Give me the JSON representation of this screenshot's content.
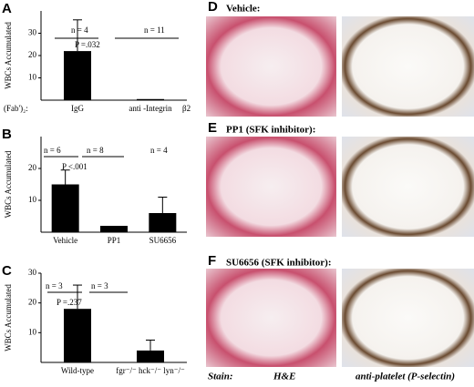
{
  "chart_data": [
    {
      "type": "bar",
      "panel": "A",
      "ylabel": "WBCs Accumulated",
      "categories": [
        "IgG",
        "anti -Integrin"
      ],
      "values": [
        22,
        0.5
      ],
      "errors": [
        14,
        0
      ],
      "color": "#000000",
      "ylim": [
        0,
        40
      ],
      "yticks": [
        10,
        20,
        30
      ],
      "annotations": [
        "n = 4",
        "n = 11",
        "P =.032",
        "(Fab')₂:",
        "β2"
      ]
    },
    {
      "type": "bar",
      "panel": "B",
      "ylabel": "WBCs Accumulated",
      "categories": [
        "Vehicle",
        "PP1",
        "SU6656"
      ],
      "values": [
        15,
        2,
        6
      ],
      "errors": [
        4.5,
        0,
        5
      ],
      "color": "#000000",
      "ylim": [
        0,
        30
      ],
      "yticks": [
        10,
        20
      ],
      "annotations": [
        "n = 6",
        "n = 8",
        "n = 4",
        "P <.001"
      ]
    },
    {
      "type": "bar",
      "panel": "C",
      "ylabel": "WBCs Accumulated",
      "categories": [
        "Wild-type",
        "fgr⁻/⁻ hck⁻/⁻ lyn⁻/⁻"
      ],
      "values": [
        18,
        4
      ],
      "errors": [
        8,
        3.5
      ],
      "color": "#000000",
      "ylim": [
        0,
        30
      ],
      "yticks": [
        10,
        20,
        30
      ],
      "annotations": [
        "n = 3",
        "n = 3",
        "P =.237"
      ]
    }
  ],
  "panels": [
    {
      "label": "D",
      "title": "Vehicle:"
    },
    {
      "label": "E",
      "title": "PP1 (SFK inhibitor):"
    },
    {
      "label": "F",
      "title": "SU6656 (SFK inhibitor):"
    }
  ],
  "stain": {
    "label": "Stain:",
    "left": "H&E",
    "right": "anti-platelet (P-selectin)"
  }
}
